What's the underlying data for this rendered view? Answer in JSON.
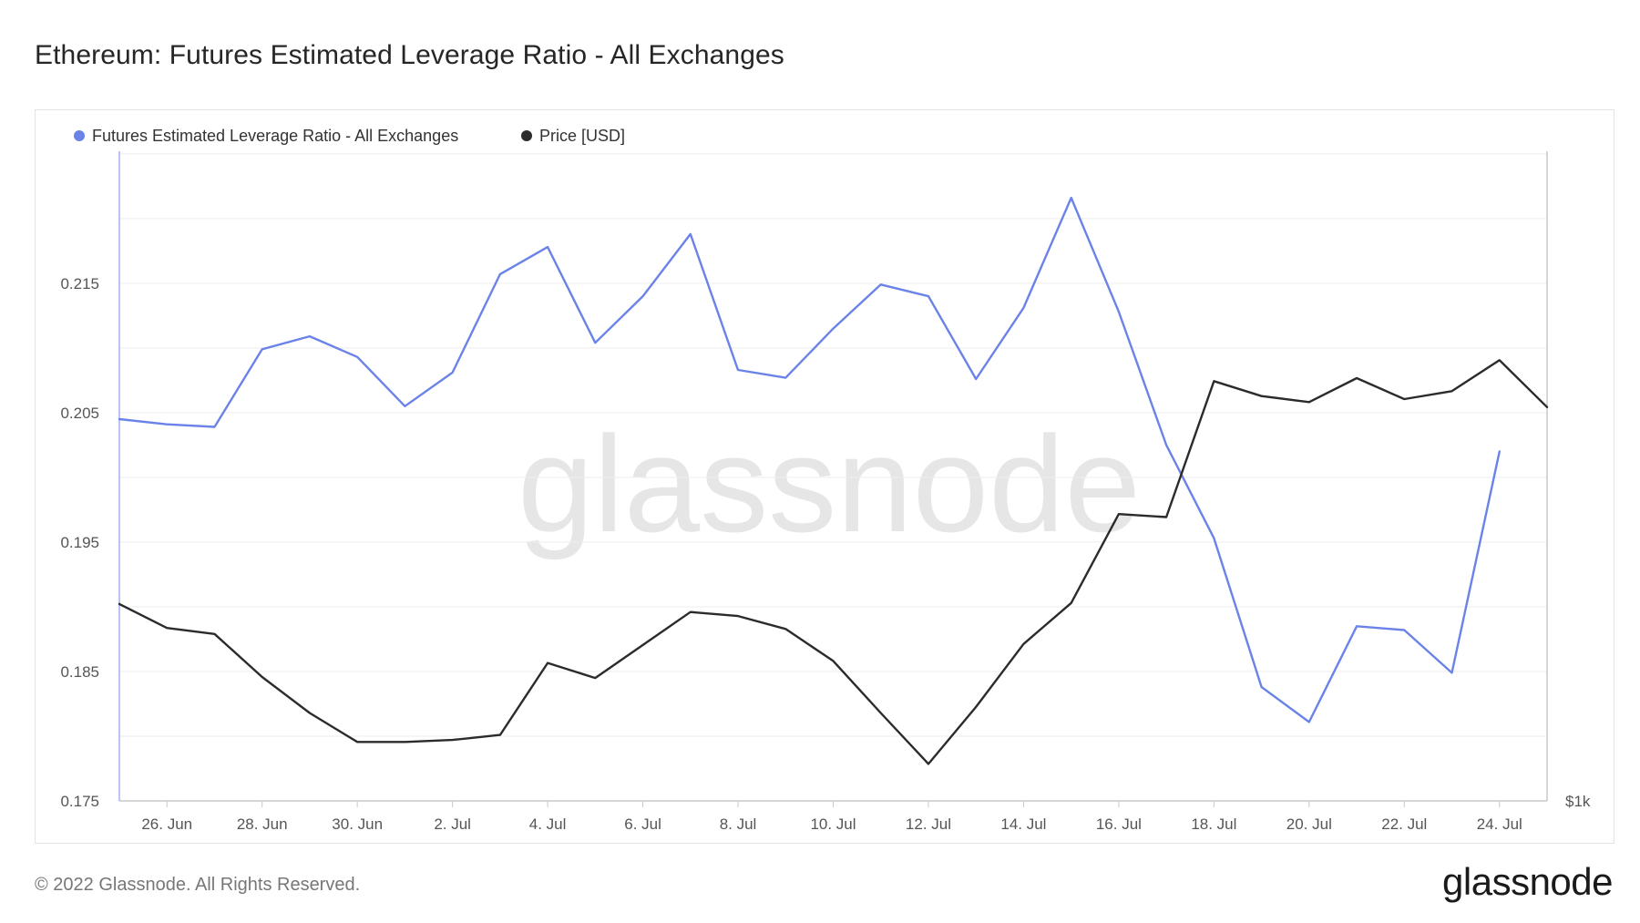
{
  "title": "Ethereum: Futures Estimated Leverage Ratio - All Exchanges",
  "footer": {
    "copyright": "© 2022 Glassnode. All Rights Reserved.",
    "logo": "glassnode"
  },
  "watermark": "glassnode",
  "colors": {
    "leverage": "#6b83e8",
    "price": "#2b2b2b",
    "grid": "#eeeeee",
    "axis": "#c8c8c8"
  },
  "chart_data": {
    "type": "line",
    "title": "Ethereum: Futures Estimated Leverage Ratio - All Exchanges",
    "legend_position": "top-left",
    "dates": [
      "25 Jun",
      "26 Jun",
      "27 Jun",
      "28 Jun",
      "29 Jun",
      "30 Jun",
      "1 Jul",
      "2 Jul",
      "3 Jul",
      "4 Jul",
      "5 Jul",
      "6 Jul",
      "7 Jul",
      "8 Jul",
      "9 Jul",
      "10 Jul",
      "11 Jul",
      "12 Jul",
      "13 Jul",
      "14 Jul",
      "15 Jul",
      "16 Jul",
      "17 Jul",
      "18 Jul",
      "19 Jul",
      "20 Jul",
      "21 Jul",
      "22 Jul",
      "23 Jul",
      "24 Jul",
      "25 Jul"
    ],
    "x_ticks": [
      "26. Jun",
      "28. Jun",
      "30. Jun",
      "2. Jul",
      "4. Jul",
      "6. Jul",
      "8. Jul",
      "10. Jul",
      "12. Jul",
      "14. Jul",
      "16. Jul",
      "18. Jul",
      "20. Jul",
      "22. Jul",
      "24. Jul"
    ],
    "x_tick_index": [
      1,
      3,
      5,
      7,
      9,
      11,
      13,
      15,
      17,
      19,
      21,
      23,
      25,
      27,
      29
    ],
    "y_left": {
      "ticks": [
        "0.175",
        "0.185",
        "0.195",
        "0.205",
        "0.215"
      ],
      "tick_values": [
        0.175,
        0.185,
        0.195,
        0.205,
        0.215
      ],
      "range": [
        0.175,
        0.2252
      ]
    },
    "y_right": {
      "ticks": [
        "$1k"
      ],
      "tick_values": [
        1000
      ],
      "range": [
        1000,
        1650
      ]
    },
    "series": [
      {
        "name": "Futures Estimated Leverage Ratio - All Exchanges",
        "axis": "left",
        "values": [
          0.2045,
          0.2041,
          0.2039,
          0.2099,
          0.2109,
          0.2093,
          0.2055,
          0.2081,
          0.2157,
          0.2178,
          0.2104,
          0.214,
          0.2188,
          0.2083,
          0.2077,
          0.2115,
          0.2149,
          0.214,
          0.2076,
          0.2131,
          0.2216,
          0.2128,
          0.2025,
          0.1953,
          0.1838,
          0.1811,
          0.1885,
          0.1882,
          0.1849,
          0.202,
          null
        ]
      },
      {
        "name": "Price [USD]",
        "axis": "right",
        "values": [
          1197,
          1173,
          1167,
          1124,
          1088,
          1059,
          1059,
          1061,
          1066,
          1138,
          1123,
          1156,
          1189,
          1185,
          1172,
          1140,
          1088,
          1037,
          1094,
          1157,
          1198,
          1287,
          1284,
          1420,
          1405,
          1399,
          1423,
          1402,
          1410,
          1441,
          1394
        ]
      }
    ]
  }
}
